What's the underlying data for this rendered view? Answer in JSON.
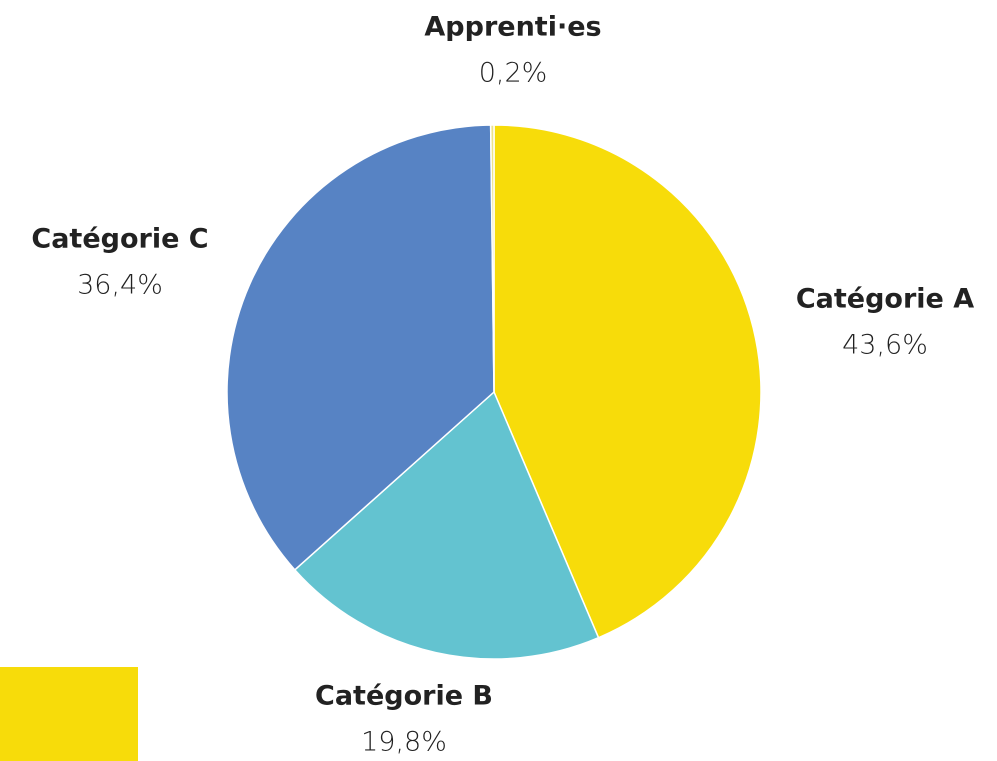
{
  "chart_data": {
    "type": "pie",
    "categories": [
      "Catégorie A",
      "Catégorie B",
      "Catégorie C",
      "Apprenti·es"
    ],
    "values": [
      43.6,
      19.8,
      36.4,
      0.2
    ],
    "value_labels": [
      "43,6%",
      "19,8%",
      "36,4%",
      "0,2%"
    ],
    "colors": [
      "#f7dc0a",
      "#63c3d0",
      "#5783c4",
      "#ece38a"
    ]
  }
}
